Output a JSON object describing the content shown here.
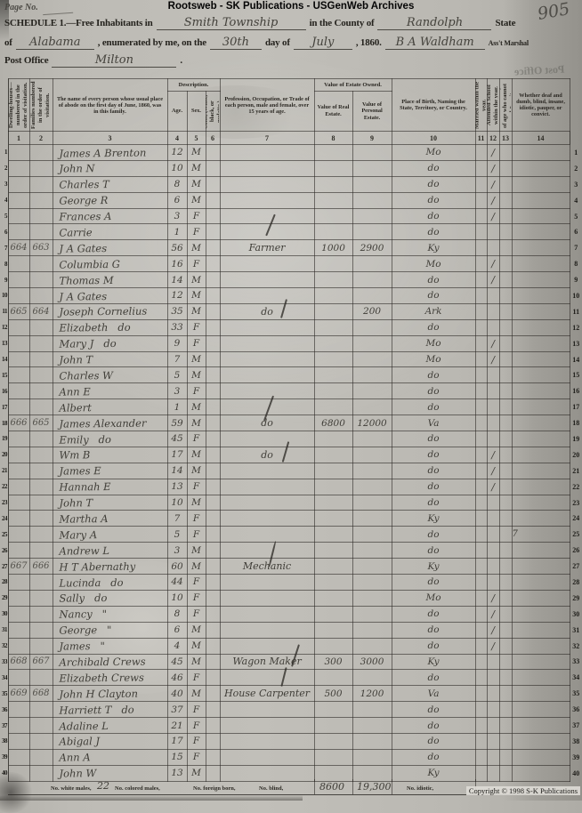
{
  "banner": "Rootsweb - SK Publications - USGenWeb Archives",
  "page_label": "Page No.",
  "page_number_hw": "905",
  "header": {
    "schedule_prefix": "SCHEDULE 1.—Free Inhabitants in",
    "township": "Smith Township",
    "county_label": "in the County of",
    "county": "Randolph",
    "state_label": "State",
    "of_label": "of",
    "state": "Alabama",
    "enumerated_label": ", enumerated by me, on the",
    "day": "30th",
    "day_of_label": "day of",
    "month": "July",
    "year_label": ", 1860.",
    "marshal": "B A Waldham",
    "marshal_title": "Ass't Marshal",
    "post_office_label": "Post Office",
    "post_office": "Milton",
    "period": ".",
    "ghost_stamp": "Post Office"
  },
  "table": {
    "group_desc": "Description.",
    "group_value": "Value of Estate Owned.",
    "col_headers": {
      "c1": "Dwelling-houses— numbered in the order of visitation.",
      "c2": "Families numbered in the order of visitation.",
      "c3": "The name of every person whose usual place of abode on the first day of June, 1860, was in this family.",
      "c4": "Age.",
      "c5": "Sex.",
      "c6": "Color, (White, black, or mulatto.)",
      "c7": "Profession, Occupation, or Trade of each person, male and female, over 15 years of age.",
      "c8": "Value of Real Estate.",
      "c9": "Value of Personal Estate.",
      "c10": "Place of Birth, Naming the State, Territory, or Country.",
      "c11": "Married within the year.",
      "c12": "Attended School within the year.",
      "c13": "Persons over 20 y'rs of age who cannot read & write.",
      "c14": "Whether deaf and dumb, blind, insane, idiotic, pauper, or convict."
    },
    "col_numbers": [
      "1",
      "2",
      "3",
      "4",
      "5",
      "6",
      "7",
      "8",
      "9",
      "10",
      "11",
      "12",
      "13",
      "14"
    ],
    "rows": [
      {
        "n": "1",
        "dw": "",
        "fam": "",
        "name": "James A Brenton",
        "age": "12",
        "sex": "M",
        "color": "",
        "occ": "",
        "real": "",
        "pers": "",
        "birth": "Mo",
        "m": "",
        "sch": "/",
        "rd": "",
        "rem": ""
      },
      {
        "n": "2",
        "dw": "",
        "fam": "",
        "name": "John N",
        "age": "10",
        "sex": "M",
        "color": "",
        "occ": "",
        "real": "",
        "pers": "",
        "birth": "do",
        "m": "",
        "sch": "/",
        "rd": "",
        "rem": ""
      },
      {
        "n": "3",
        "dw": "",
        "fam": "",
        "name": "Charles T",
        "age": "8",
        "sex": "M",
        "color": "",
        "occ": "",
        "real": "",
        "pers": "",
        "birth": "do",
        "m": "",
        "sch": "/",
        "rd": "",
        "rem": ""
      },
      {
        "n": "4",
        "dw": "",
        "fam": "",
        "name": "George R",
        "age": "6",
        "sex": "M",
        "color": "",
        "occ": "",
        "real": "",
        "pers": "",
        "birth": "do",
        "m": "",
        "sch": "/",
        "rd": "",
        "rem": ""
      },
      {
        "n": "5",
        "dw": "",
        "fam": "",
        "name": "Frances A",
        "age": "3",
        "sex": "F",
        "color": "",
        "occ": "",
        "real": "",
        "pers": "",
        "birth": "do",
        "m": "",
        "sch": "/",
        "rd": "",
        "rem": ""
      },
      {
        "n": "6",
        "dw": "",
        "fam": "",
        "name": "Carrie",
        "age": "1",
        "sex": "F",
        "color": "",
        "occ": "",
        "real": "",
        "pers": "",
        "birth": "do",
        "m": "",
        "sch": "",
        "rd": "",
        "rem": ""
      },
      {
        "n": "7",
        "dw": "664",
        "fam": "663",
        "name": "J A Gates",
        "age": "56",
        "sex": "M",
        "color": "",
        "occ": "Farmer",
        "real": "1000",
        "pers": "2900",
        "birth": "Ky",
        "m": "",
        "sch": "",
        "rd": "",
        "rem": ""
      },
      {
        "n": "8",
        "dw": "",
        "fam": "",
        "name": "Columbia G",
        "age": "16",
        "sex": "F",
        "color": "",
        "occ": "",
        "real": "",
        "pers": "",
        "birth": "Mo",
        "m": "",
        "sch": "/",
        "rd": "",
        "rem": ""
      },
      {
        "n": "9",
        "dw": "",
        "fam": "",
        "name": "Thomas M",
        "age": "14",
        "sex": "M",
        "color": "",
        "occ": "",
        "real": "",
        "pers": "",
        "birth": "do",
        "m": "",
        "sch": "/",
        "rd": "",
        "rem": ""
      },
      {
        "n": "10",
        "dw": "",
        "fam": "",
        "name": "J A Gates",
        "age": "12",
        "sex": "M",
        "color": "",
        "occ": "",
        "real": "",
        "pers": "",
        "birth": "do",
        "m": "",
        "sch": "",
        "rd": "",
        "rem": ""
      },
      {
        "n": "11",
        "dw": "665",
        "fam": "664",
        "name": "Joseph Cornelius",
        "age": "35",
        "sex": "M",
        "color": "",
        "occ": "do",
        "real": "",
        "pers": "200",
        "birth": "Ark",
        "m": "",
        "sch": "",
        "rd": "",
        "rem": ""
      },
      {
        "n": "12",
        "dw": "",
        "fam": "",
        "name": "Elizabeth   do",
        "age": "33",
        "sex": "F",
        "color": "",
        "occ": "",
        "real": "",
        "pers": "",
        "birth": "do",
        "m": "",
        "sch": "",
        "rd": "",
        "rem": ""
      },
      {
        "n": "13",
        "dw": "",
        "fam": "",
        "name": "Mary J   do",
        "age": "9",
        "sex": "F",
        "color": "",
        "occ": "",
        "real": "",
        "pers": "",
        "birth": "Mo",
        "m": "",
        "sch": "/",
        "rd": "",
        "rem": ""
      },
      {
        "n": "14",
        "dw": "",
        "fam": "",
        "name": "John T",
        "age": "7",
        "sex": "M",
        "color": "",
        "occ": "",
        "real": "",
        "pers": "",
        "birth": "Mo",
        "m": "",
        "sch": "/",
        "rd": "",
        "rem": ""
      },
      {
        "n": "15",
        "dw": "",
        "fam": "",
        "name": "Charles W",
        "age": "5",
        "sex": "M",
        "color": "",
        "occ": "",
        "real": "",
        "pers": "",
        "birth": "do",
        "m": "",
        "sch": "",
        "rd": "",
        "rem": ""
      },
      {
        "n": "16",
        "dw": "",
        "fam": "",
        "name": "Ann E",
        "age": "3",
        "sex": "F",
        "color": "",
        "occ": "",
        "real": "",
        "pers": "",
        "birth": "do",
        "m": "",
        "sch": "",
        "rd": "",
        "rem": ""
      },
      {
        "n": "17",
        "dw": "",
        "fam": "",
        "name": "Albert",
        "age": "1",
        "sex": "M",
        "color": "",
        "occ": "",
        "real": "",
        "pers": "",
        "birth": "do",
        "m": "",
        "sch": "",
        "rd": "",
        "rem": ""
      },
      {
        "n": "18",
        "dw": "666",
        "fam": "665",
        "name": "James Alexander",
        "age": "59",
        "sex": "M",
        "color": "",
        "occ": "do",
        "real": "6800",
        "pers": "12000",
        "birth": "Va",
        "m": "",
        "sch": "",
        "rd": "",
        "rem": ""
      },
      {
        "n": "19",
        "dw": "",
        "fam": "",
        "name": "Emily   do",
        "age": "45",
        "sex": "F",
        "color": "",
        "occ": "",
        "real": "",
        "pers": "",
        "birth": "do",
        "m": "",
        "sch": "",
        "rd": "",
        "rem": ""
      },
      {
        "n": "20",
        "dw": "",
        "fam": "",
        "name": "Wm B",
        "age": "17",
        "sex": "M",
        "color": "",
        "occ": "do",
        "real": "",
        "pers": "",
        "birth": "do",
        "m": "",
        "sch": "/",
        "rd": "",
        "rem": ""
      },
      {
        "n": "21",
        "dw": "",
        "fam": "",
        "name": "James E",
        "age": "14",
        "sex": "M",
        "color": "",
        "occ": "",
        "real": "",
        "pers": "",
        "birth": "do",
        "m": "",
        "sch": "/",
        "rd": "",
        "rem": ""
      },
      {
        "n": "22",
        "dw": "",
        "fam": "",
        "name": "Hannah E",
        "age": "13",
        "sex": "F",
        "color": "",
        "occ": "",
        "real": "",
        "pers": "",
        "birth": "do",
        "m": "",
        "sch": "/",
        "rd": "",
        "rem": ""
      },
      {
        "n": "23",
        "dw": "",
        "fam": "",
        "name": "John T",
        "age": "10",
        "sex": "M",
        "color": "",
        "occ": "",
        "real": "",
        "pers": "",
        "birth": "do",
        "m": "",
        "sch": "",
        "rd": "",
        "rem": ""
      },
      {
        "n": "24",
        "dw": "",
        "fam": "",
        "name": "Martha A",
        "age": "7",
        "sex": "F",
        "color": "",
        "occ": "",
        "real": "",
        "pers": "",
        "birth": "Ky",
        "m": "",
        "sch": "",
        "rd": "",
        "rem": ""
      },
      {
        "n": "25",
        "dw": "",
        "fam": "",
        "name": "Mary A",
        "age": "5",
        "sex": "F",
        "color": "",
        "occ": "",
        "real": "",
        "pers": "",
        "birth": "do",
        "m": "",
        "sch": "",
        "rd": "",
        "rem": "7"
      },
      {
        "n": "26",
        "dw": "",
        "fam": "",
        "name": "Andrew L",
        "age": "3",
        "sex": "M",
        "color": "",
        "occ": "",
        "real": "",
        "pers": "",
        "birth": "do",
        "m": "",
        "sch": "",
        "rd": "",
        "rem": ""
      },
      {
        "n": "27",
        "dw": "667",
        "fam": "666",
        "name": "H T Abernathy",
        "age": "60",
        "sex": "M",
        "color": "",
        "occ": "Mechanic",
        "real": "",
        "pers": "",
        "birth": "Ky",
        "m": "",
        "sch": "",
        "rd": "",
        "rem": ""
      },
      {
        "n": "28",
        "dw": "",
        "fam": "",
        "name": "Lucinda   do",
        "age": "44",
        "sex": "F",
        "color": "",
        "occ": "",
        "real": "",
        "pers": "",
        "birth": "do",
        "m": "",
        "sch": "",
        "rd": "",
        "rem": ""
      },
      {
        "n": "29",
        "dw": "",
        "fam": "",
        "name": "Sally   do",
        "age": "10",
        "sex": "F",
        "color": "",
        "occ": "",
        "real": "",
        "pers": "",
        "birth": "Mo",
        "m": "",
        "sch": "/",
        "rd": "",
        "rem": ""
      },
      {
        "n": "30",
        "dw": "",
        "fam": "",
        "name": "Nancy   \"",
        "age": "8",
        "sex": "F",
        "color": "",
        "occ": "",
        "real": "",
        "pers": "",
        "birth": "do",
        "m": "",
        "sch": "/",
        "rd": "",
        "rem": ""
      },
      {
        "n": "31",
        "dw": "",
        "fam": "",
        "name": "George   \"",
        "age": "6",
        "sex": "M",
        "color": "",
        "occ": "",
        "real": "",
        "pers": "",
        "birth": "do",
        "m": "",
        "sch": "/",
        "rd": "",
        "rem": ""
      },
      {
        "n": "32",
        "dw": "",
        "fam": "",
        "name": "James   \"",
        "age": "4",
        "sex": "M",
        "color": "",
        "occ": "",
        "real": "",
        "pers": "",
        "birth": "do",
        "m": "",
        "sch": "/",
        "rd": "",
        "rem": ""
      },
      {
        "n": "33",
        "dw": "668",
        "fam": "667",
        "name": "Archibald Crews",
        "age": "45",
        "sex": "M",
        "color": "",
        "occ": "Wagon Maker",
        "real": "300",
        "pers": "3000",
        "birth": "Ky",
        "m": "",
        "sch": "",
        "rd": "",
        "rem": ""
      },
      {
        "n": "34",
        "dw": "",
        "fam": "",
        "name": "Elizabeth Crews",
        "age": "46",
        "sex": "F",
        "color": "",
        "occ": "",
        "real": "",
        "pers": "",
        "birth": "do",
        "m": "",
        "sch": "",
        "rd": "",
        "rem": ""
      },
      {
        "n": "35",
        "dw": "669",
        "fam": "668",
        "name": "John H Clayton",
        "age": "40",
        "sex": "M",
        "color": "",
        "occ": "House Carpenter",
        "real": "500",
        "pers": "1200",
        "birth": "Va",
        "m": "",
        "sch": "",
        "rd": "",
        "rem": ""
      },
      {
        "n": "36",
        "dw": "",
        "fam": "",
        "name": "Harriett T   do",
        "age": "37",
        "sex": "F",
        "color": "",
        "occ": "",
        "real": "",
        "pers": "",
        "birth": "do",
        "m": "",
        "sch": "",
        "rd": "",
        "rem": ""
      },
      {
        "n": "37",
        "dw": "",
        "fam": "",
        "name": "Adaline L",
        "age": "21",
        "sex": "F",
        "color": "",
        "occ": "",
        "real": "",
        "pers": "",
        "birth": "do",
        "m": "",
        "sch": "",
        "rd": "",
        "rem": ""
      },
      {
        "n": "38",
        "dw": "",
        "fam": "",
        "name": "Abigal J",
        "age": "17",
        "sex": "F",
        "color": "",
        "occ": "",
        "real": "",
        "pers": "",
        "birth": "do",
        "m": "",
        "sch": "",
        "rd": "",
        "rem": ""
      },
      {
        "n": "39",
        "dw": "",
        "fam": "",
        "name": "Ann A",
        "age": "15",
        "sex": "F",
        "color": "",
        "occ": "",
        "real": "",
        "pers": "",
        "birth": "do",
        "m": "",
        "sch": "",
        "rd": "",
        "rem": ""
      },
      {
        "n": "40",
        "dw": "",
        "fam": "",
        "name": "John W",
        "age": "13",
        "sex": "M",
        "color": "",
        "occ": "",
        "real": "",
        "pers": "",
        "birth": "Ky",
        "m": "",
        "sch": "",
        "rd": "",
        "rem": ""
      }
    ]
  },
  "footer": {
    "white_males_label": "No. white males,",
    "white_males_value": "22",
    "colored_males_label": "No. colored males,",
    "foreign_born_label": "No. foreign born,",
    "blind_label": "No. blind,",
    "total_real_estate": "8600",
    "total_personal_estate": "19,300",
    "idiotic_label": "No. idiotic,"
  },
  "copyright": "Copyright © 1998 S-K Publications"
}
